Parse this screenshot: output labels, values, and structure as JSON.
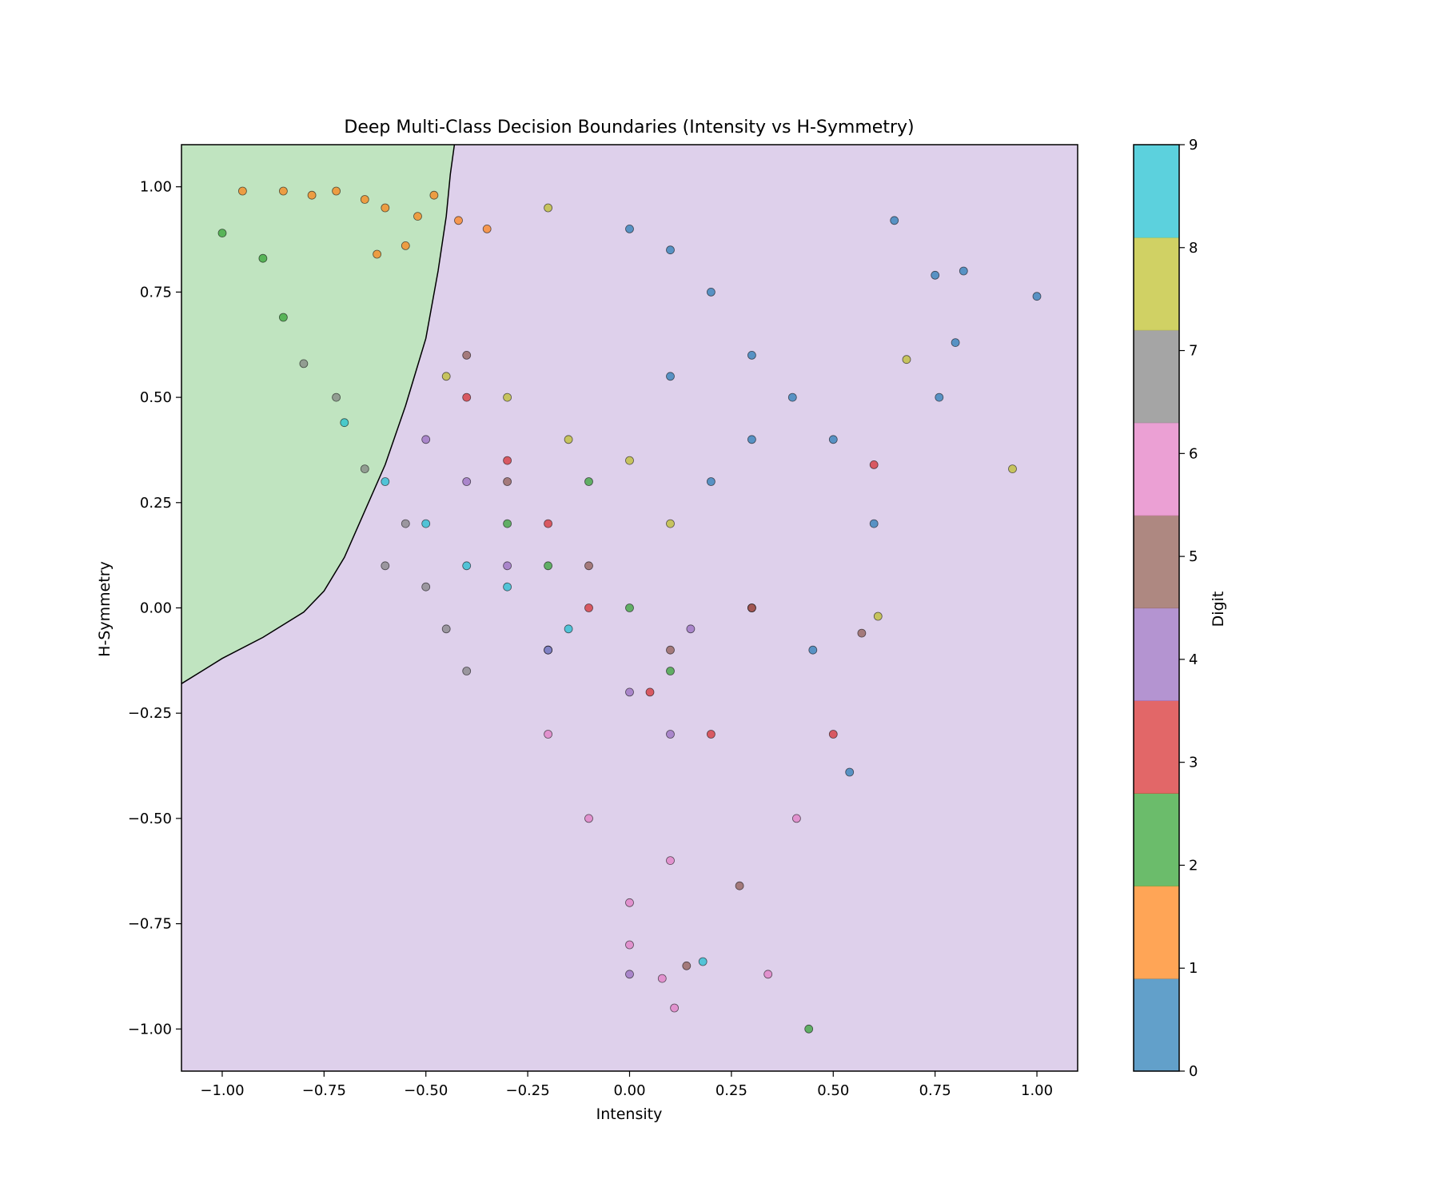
{
  "chart_data": {
    "type": "scatter",
    "title": "Deep Multi-Class Decision Boundaries (Intensity vs H-Symmetry)",
    "xlabel": "Intensity",
    "ylabel": "H-Symmetry",
    "xlim": [
      -1.1,
      1.1
    ],
    "ylim": [
      -1.1,
      1.1
    ],
    "grid": false,
    "x_ticks": [
      -1.0,
      -0.75,
      -0.5,
      -0.25,
      0.0,
      0.25,
      0.5,
      0.75,
      1.0
    ],
    "x_tick_labels": [
      "−1.00",
      "−0.75",
      "−0.50",
      "−0.25",
      "0.00",
      "0.25",
      "0.50",
      "0.75",
      "1.00"
    ],
    "y_ticks": [
      1.0,
      0.75,
      0.5,
      0.25,
      0.0,
      -0.25,
      -0.5,
      -0.75,
      -1.0
    ],
    "y_tick_labels": [
      "1.00",
      "0.75",
      "0.50",
      "0.25",
      "0.00",
      "−0.25",
      "−0.50",
      "−0.75",
      "−1.00"
    ],
    "colorbar": {
      "label": "Digit",
      "range": [
        0,
        9
      ],
      "ticks": [
        0,
        1,
        2,
        3,
        4,
        5,
        6,
        7,
        8,
        9
      ],
      "tick_labels": [
        "0",
        "1",
        "2",
        "3",
        "4",
        "5",
        "6",
        "7",
        "8",
        "9"
      ],
      "colors": [
        "#1f77b4",
        "#ff7f0e",
        "#2ca02c",
        "#d62728",
        "#9467bd",
        "#8c564b",
        "#e377c2",
        "#7f7f7f",
        "#bcbd22",
        "#17becf"
      ]
    },
    "decision_regions": [
      {
        "predicted_class": 2,
        "color": "#c0e4c0"
      },
      {
        "predicted_class": 4,
        "color": "#ded0eb"
      }
    ],
    "decision_boundary": [
      [
        -1.1,
        -0.18
      ],
      [
        -1.0,
        -0.12
      ],
      [
        -0.9,
        -0.07
      ],
      [
        -0.8,
        -0.01
      ],
      [
        -0.75,
        0.04
      ],
      [
        -0.7,
        0.12
      ],
      [
        -0.65,
        0.23
      ],
      [
        -0.6,
        0.34
      ],
      [
        -0.55,
        0.48
      ],
      [
        -0.5,
        0.64
      ],
      [
        -0.47,
        0.8
      ],
      [
        -0.45,
        0.93
      ],
      [
        -0.44,
        1.03
      ],
      [
        -0.43,
        1.1
      ]
    ],
    "point_style": {
      "alpha": 0.7,
      "edgecolor": "#000000",
      "size": 5
    },
    "sample_points": [
      [
        -0.72,
        0.99,
        1
      ],
      [
        -0.78,
        0.98,
        1
      ],
      [
        -0.65,
        0.97,
        1
      ],
      [
        -0.6,
        0.95,
        1
      ],
      [
        -0.52,
        0.93,
        1
      ],
      [
        -0.42,
        0.92,
        1
      ],
      [
        -0.35,
        0.9,
        1
      ],
      [
        -0.85,
        0.99,
        1
      ],
      [
        -0.95,
        0.99,
        1
      ],
      [
        -0.55,
        0.86,
        1
      ],
      [
        -0.62,
        0.84,
        1
      ],
      [
        -0.48,
        0.98,
        1
      ],
      [
        -0.8,
        0.58,
        7
      ],
      [
        -0.72,
        0.5,
        7
      ],
      [
        -0.65,
        0.33,
        7
      ],
      [
        -0.55,
        0.2,
        7
      ],
      [
        -0.5,
        0.05,
        7
      ],
      [
        -0.45,
        -0.05,
        7
      ],
      [
        -0.6,
        0.1,
        7
      ],
      [
        -0.4,
        -0.15,
        7
      ],
      [
        -0.7,
        0.44,
        9
      ],
      [
        -0.6,
        0.3,
        9
      ],
      [
        -0.5,
        0.2,
        9
      ],
      [
        -0.4,
        0.1,
        9
      ],
      [
        -0.3,
        0.05,
        9
      ],
      [
        -0.15,
        -0.05,
        9
      ],
      [
        0.18,
        -0.84,
        9
      ],
      [
        -0.2,
        -0.1,
        9
      ],
      [
        -0.85,
        0.69,
        2
      ],
      [
        -0.9,
        0.83,
        2
      ],
      [
        -1.0,
        0.89,
        2
      ],
      [
        -0.3,
        0.2,
        2
      ],
      [
        -0.2,
        0.1,
        2
      ],
      [
        0.0,
        0.0,
        2
      ],
      [
        0.1,
        -0.15,
        2
      ],
      [
        0.44,
        -1.0,
        2
      ],
      [
        -0.1,
        0.3,
        2
      ],
      [
        -0.4,
        0.5,
        3
      ],
      [
        -0.3,
        0.35,
        3
      ],
      [
        -0.2,
        0.2,
        3
      ],
      [
        -0.1,
        0.0,
        3
      ],
      [
        0.05,
        -0.2,
        3
      ],
      [
        0.2,
        -0.3,
        3
      ],
      [
        0.3,
        0.0,
        3
      ],
      [
        0.6,
        0.34,
        3
      ],
      [
        0.5,
        -0.3,
        3
      ],
      [
        -0.5,
        0.4,
        4
      ],
      [
        -0.4,
        0.3,
        4
      ],
      [
        -0.3,
        0.1,
        4
      ],
      [
        -0.2,
        -0.1,
        4
      ],
      [
        0.0,
        -0.2,
        4
      ],
      [
        0.15,
        -0.05,
        4
      ],
      [
        -0.0,
        -0.87,
        4
      ],
      [
        0.1,
        -0.3,
        4
      ],
      [
        -0.4,
        0.6,
        5
      ],
      [
        -0.3,
        0.3,
        5
      ],
      [
        -0.1,
        0.1,
        5
      ],
      [
        0.1,
        -0.1,
        5
      ],
      [
        0.27,
        -0.66,
        5
      ],
      [
        0.14,
        -0.85,
        5
      ],
      [
        0.3,
        0.0,
        5
      ],
      [
        0.57,
        -0.06,
        5
      ],
      [
        -0.2,
        -0.3,
        6
      ],
      [
        -0.1,
        -0.5,
        6
      ],
      [
        0.0,
        -0.7,
        6
      ],
      [
        0.1,
        -0.6,
        6
      ],
      [
        0.11,
        -0.95,
        6
      ],
      [
        0.34,
        -0.87,
        6
      ],
      [
        0.08,
        -0.88,
        6
      ],
      [
        0.41,
        -0.5,
        6
      ],
      [
        0.0,
        -0.8,
        6
      ],
      [
        -0.45,
        0.55,
        8
      ],
      [
        -0.3,
        0.5,
        8
      ],
      [
        -0.15,
        0.4,
        8
      ],
      [
        0.0,
        0.35,
        8
      ],
      [
        0.1,
        0.2,
        8
      ],
      [
        0.94,
        0.33,
        8
      ],
      [
        0.68,
        0.59,
        8
      ],
      [
        0.61,
        -0.02,
        8
      ],
      [
        -0.2,
        0.95,
        8
      ],
      [
        0.0,
        0.9,
        0
      ],
      [
        0.1,
        0.85,
        0
      ],
      [
        0.2,
        0.75,
        0
      ],
      [
        0.3,
        0.6,
        0
      ],
      [
        0.4,
        0.5,
        0
      ],
      [
        0.5,
        0.4,
        0
      ],
      [
        0.65,
        0.92,
        0
      ],
      [
        0.75,
        0.79,
        0
      ],
      [
        0.82,
        0.8,
        0
      ],
      [
        1.0,
        0.74,
        0
      ],
      [
        0.8,
        0.63,
        0
      ],
      [
        0.76,
        0.5,
        0
      ],
      [
        0.6,
        0.2,
        0
      ],
      [
        0.54,
        -0.39,
        0
      ],
      [
        0.45,
        -0.1,
        0
      ],
      [
        0.2,
        0.3,
        0
      ],
      [
        0.3,
        0.4,
        0
      ],
      [
        0.1,
        0.55,
        0
      ]
    ]
  }
}
